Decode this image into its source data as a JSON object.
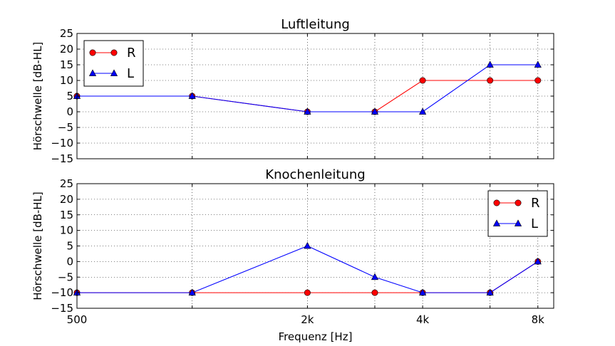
{
  "chart_data": [
    {
      "type": "line",
      "title": "Luftleitung",
      "ylabel": "Hörschwelle [dB-HL]",
      "xlabel": "",
      "x_scale": "log",
      "xlim": [
        500,
        8800
      ],
      "ylim": [
        -15,
        25
      ],
      "yticks": [
        -15,
        -10,
        -5,
        0,
        5,
        10,
        15,
        20,
        25
      ],
      "ytick_labels": [
        "−15",
        "−10",
        "−5",
        "0",
        "5",
        "10",
        "15",
        "20",
        "25"
      ],
      "xticks": [
        500,
        1000,
        2000,
        3000,
        4000,
        6000,
        8000
      ],
      "xtick_labels": [
        "",
        "",
        "",
        "",
        "",
        "",
        ""
      ],
      "grid": true,
      "legend_position": "top-left",
      "series": [
        {
          "name": "R",
          "color": "#ff0000",
          "marker": "circle",
          "x": [
            500,
            1000,
            2000,
            3000,
            4000,
            6000,
            8000
          ],
          "y": [
            5,
            5,
            0,
            0,
            10,
            10,
            10
          ]
        },
        {
          "name": "L",
          "color": "#0000ff",
          "marker": "triangle",
          "x": [
            500,
            1000,
            2000,
            3000,
            4000,
            6000,
            8000
          ],
          "y": [
            5,
            5,
            0,
            0,
            0,
            15,
            15
          ]
        }
      ]
    },
    {
      "type": "line",
      "title": "Knochenleitung",
      "ylabel": "Hörschwelle [dB-HL]",
      "xlabel": "Frequenz [Hz]",
      "x_scale": "log",
      "xlim": [
        500,
        8800
      ],
      "ylim": [
        -15,
        25
      ],
      "yticks": [
        -15,
        -10,
        -5,
        0,
        5,
        10,
        15,
        20,
        25
      ],
      "ytick_labels": [
        "−15",
        "−10",
        "−5",
        "0",
        "5",
        "10",
        "15",
        "20",
        "25"
      ],
      "xticks": [
        500,
        1000,
        2000,
        3000,
        4000,
        6000,
        8000
      ],
      "xtick_labels": [
        "500",
        "",
        "2k",
        "",
        "4k",
        "",
        "8k"
      ],
      "grid": true,
      "legend_position": "top-right",
      "series": [
        {
          "name": "R",
          "color": "#ff0000",
          "marker": "circle",
          "x": [
            500,
            1000,
            2000,
            3000,
            4000,
            6000,
            8000
          ],
          "y": [
            -10,
            -10,
            -10,
            -10,
            -10,
            -10,
            0
          ]
        },
        {
          "name": "L",
          "color": "#0000ff",
          "marker": "triangle",
          "x": [
            500,
            1000,
            2000,
            3000,
            4000,
            6000,
            8000
          ],
          "y": [
            -10,
            -10,
            5,
            -5,
            -10,
            -10,
            0
          ]
        }
      ]
    }
  ]
}
